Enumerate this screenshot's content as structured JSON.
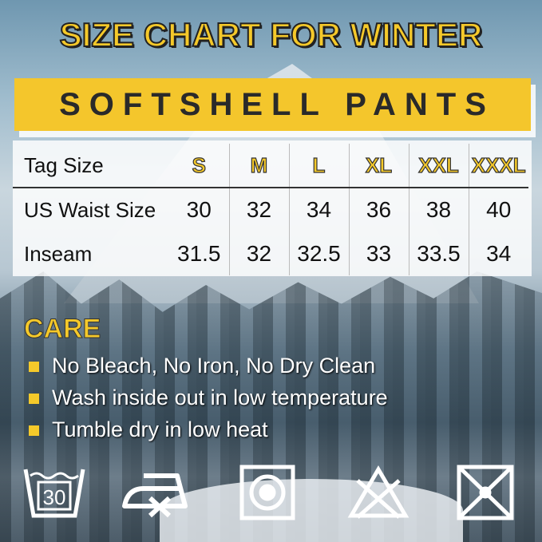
{
  "title": "SIZE CHART FOR WINTER",
  "subtitle": "SOFTSHELL PANTS",
  "table": {
    "header": {
      "label": "Tag Size",
      "sizes": [
        "S",
        "M",
        "L",
        "XL",
        "XXL",
        "XXXL"
      ]
    },
    "rows": [
      {
        "label": "US Waist Size",
        "values": [
          "30",
          "32",
          "34",
          "36",
          "38",
          "40"
        ]
      },
      {
        "label": "Inseam",
        "values": [
          "31.5",
          "32",
          "32.5",
          "33",
          "33.5",
          "34"
        ]
      }
    ]
  },
  "care": {
    "heading": "CARE",
    "items": [
      "No Bleach, No Iron, No Dry Clean",
      "Wash inside out in low temperature",
      "Tumble dry in low heat"
    ]
  },
  "icons": [
    {
      "name": "wash-30-icon",
      "text": "30"
    },
    {
      "name": "no-iron-icon"
    },
    {
      "name": "tumble-dry-icon"
    },
    {
      "name": "no-bleach-icon"
    },
    {
      "name": "no-dry-clean-icon"
    }
  ],
  "colors": {
    "accent": "#f4c62c",
    "text": "#111111"
  }
}
